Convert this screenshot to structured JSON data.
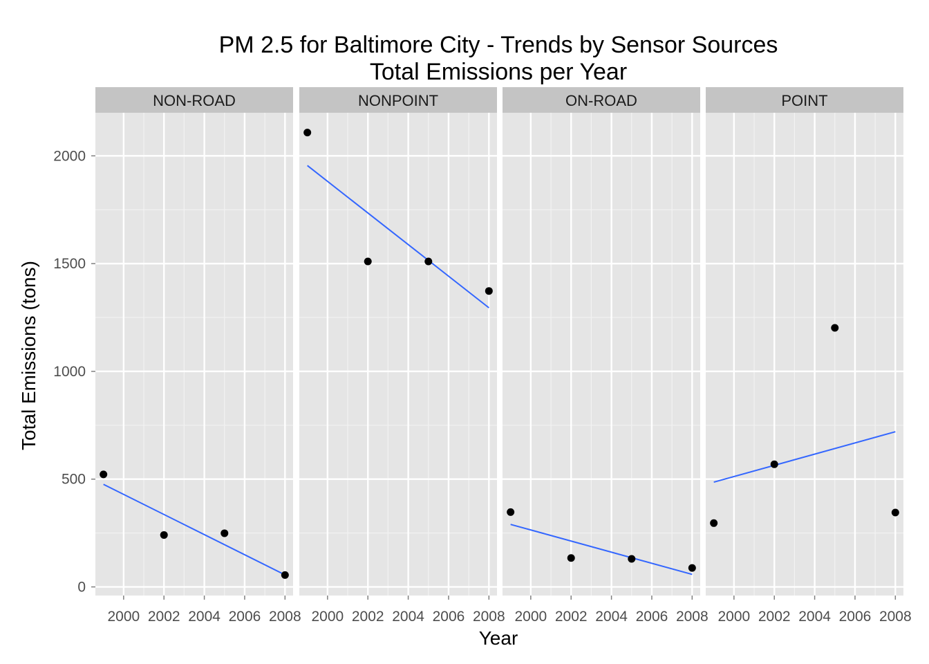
{
  "chart_data": {
    "type": "scatter",
    "title_lines": [
      "PM 2.5 for Baltimore City - Trends by Sensor Sources",
      "Total Emissions per Year"
    ],
    "xlabel": "Year",
    "ylabel": "Total Emissions (tons)",
    "xlim": [
      1998.6,
      2008.4
    ],
    "ylim": [
      -40,
      2200
    ],
    "x_ticks": [
      2000,
      2002,
      2004,
      2006,
      2008
    ],
    "x_tick_labels": [
      "2000",
      "2002",
      "2004",
      "2006",
      "2008"
    ],
    "y_ticks": [
      0,
      500,
      1000,
      1500,
      2000
    ],
    "y_tick_labels": [
      "0",
      "500",
      "1000",
      "1500",
      "2000"
    ],
    "grid": true,
    "layout": "facet-row",
    "point_color": "#000000",
    "trend_color": "#3366ff",
    "panel_color": "#e5e5e5",
    "strip_color": "#c4c4c4",
    "facets": [
      {
        "label": "NON-ROAD",
        "points": [
          {
            "x": 1999,
            "y": 522
          },
          {
            "x": 2002,
            "y": 241
          },
          {
            "x": 2005,
            "y": 249
          },
          {
            "x": 2008,
            "y": 55
          }
        ],
        "trend": [
          {
            "x": 1999,
            "y": 476
          },
          {
            "x": 2008,
            "y": 56
          }
        ]
      },
      {
        "label": "NONPOINT",
        "points": [
          {
            "x": 1999,
            "y": 2108
          },
          {
            "x": 2002,
            "y": 1510
          },
          {
            "x": 2005,
            "y": 1510
          },
          {
            "x": 2008,
            "y": 1373
          }
        ],
        "trend": [
          {
            "x": 1999,
            "y": 1955
          },
          {
            "x": 2008,
            "y": 1295
          }
        ]
      },
      {
        "label": "ON-ROAD",
        "points": [
          {
            "x": 1999,
            "y": 347
          },
          {
            "x": 2002,
            "y": 134
          },
          {
            "x": 2005,
            "y": 130
          },
          {
            "x": 2008,
            "y": 88
          }
        ],
        "trend": [
          {
            "x": 1999,
            "y": 290
          },
          {
            "x": 2008,
            "y": 58
          }
        ]
      },
      {
        "label": "POINT",
        "points": [
          {
            "x": 1999,
            "y": 296
          },
          {
            "x": 2002,
            "y": 569
          },
          {
            "x": 2005,
            "y": 1202
          },
          {
            "x": 2008,
            "y": 345
          }
        ],
        "trend": [
          {
            "x": 1999,
            "y": 486
          },
          {
            "x": 2008,
            "y": 720
          }
        ]
      }
    ]
  }
}
